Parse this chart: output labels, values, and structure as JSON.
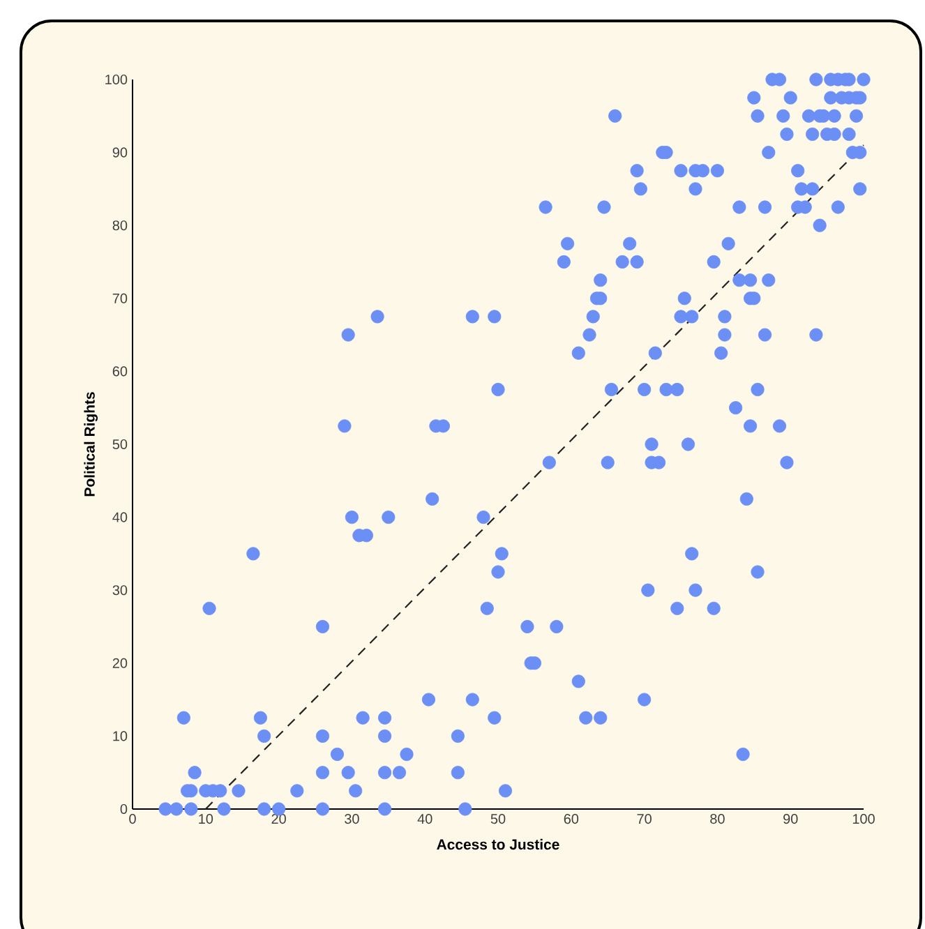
{
  "chart_data": {
    "type": "scatter",
    "xlabel": "Access to Justice",
    "ylabel": "Political Rights",
    "xlim": [
      0,
      100
    ],
    "ylim": [
      0,
      100
    ],
    "xticks": [
      0,
      10,
      20,
      30,
      40,
      50,
      60,
      70,
      80,
      90,
      100
    ],
    "yticks": [
      0,
      10,
      20,
      30,
      40,
      50,
      60,
      70,
      80,
      90,
      100
    ],
    "grid": false,
    "series": [
      {
        "color": "#6b8ff5",
        "marker": "circle",
        "x": [
          4.5,
          6,
          8,
          7,
          8,
          8.5,
          7.5,
          10,
          11,
          12.5,
          12,
          14.5,
          10.5,
          16.5,
          17.5,
          18,
          18,
          20,
          22.5,
          26,
          26,
          26,
          26,
          28,
          29,
          29.5,
          29.5,
          30,
          30.5,
          31,
          32,
          31.5,
          33.5,
          34.5,
          34.5,
          34.5,
          34.5,
          35,
          36.5,
          37.5,
          40.5,
          41,
          41.5,
          42.5,
          44.5,
          44.5,
          45.5,
          46.5,
          46.5,
          48,
          48.5,
          49.5,
          49.5,
          50,
          50,
          50.5,
          51,
          54,
          54.5,
          55,
          56.5,
          57,
          58,
          59,
          59.5,
          61,
          61,
          62,
          62.5,
          63,
          63.5,
          64,
          64,
          64,
          64.5,
          65,
          65.5,
          66,
          67,
          68,
          69,
          69,
          70,
          69.5,
          70,
          70.5,
          71,
          71,
          71.5,
          72,
          72.5,
          73,
          73,
          74.5,
          74.5,
          75,
          75,
          75.5,
          76,
          76.5,
          76.5,
          77,
          77,
          77,
          78,
          79.5,
          79.5,
          80,
          80.5,
          81,
          81,
          81.5,
          82.5,
          83,
          83,
          83.5,
          84,
          84.5,
          84.5,
          84.5,
          85,
          85,
          85.5,
          85.5,
          85.5,
          86.5,
          86.5,
          87,
          87,
          87.5,
          88.5,
          88.5,
          89,
          89.5,
          89.5,
          90,
          91,
          91,
          91.5,
          92,
          92.5,
          93,
          93,
          93.5,
          93.5,
          94,
          94,
          94.5,
          95,
          95.5,
          95.5,
          96,
          96,
          96.5,
          97,
          97.5,
          98,
          98,
          98,
          98.5,
          99,
          99,
          99.5,
          99.5,
          99.5,
          100,
          96.5
        ],
        "values": [
          0,
          0,
          0,
          12.5,
          2.5,
          5,
          2.5,
          2.5,
          2.5,
          0,
          2.5,
          2.5,
          27.5,
          35,
          12.5,
          10,
          0,
          0,
          2.5,
          0,
          5,
          10,
          25,
          7.5,
          52.5,
          65,
          5,
          40,
          2.5,
          37.5,
          37.5,
          12.5,
          67.5,
          12.5,
          10,
          5,
          0,
          40,
          5,
          7.5,
          15,
          42.5,
          52.5,
          52.5,
          10,
          5,
          0,
          15,
          67.5,
          40,
          27.5,
          67.5,
          12.5,
          57.5,
          32.5,
          35,
          2.5,
          25,
          20,
          20,
          82.5,
          47.5,
          25,
          75,
          77.5,
          62.5,
          17.5,
          12.5,
          65,
          67.5,
          70,
          70,
          72.5,
          12.5,
          82.5,
          47.5,
          57.5,
          95,
          75,
          77.5,
          75,
          87.5,
          57.5,
          85,
          15,
          30,
          47.5,
          50,
          62.5,
          47.5,
          90,
          90,
          57.5,
          57.5,
          27.5,
          67.5,
          87.5,
          70,
          50,
          35,
          67.5,
          87.5,
          85,
          30,
          87.5,
          75,
          27.5,
          87.5,
          62.5,
          67.5,
          65,
          77.5,
          55,
          82.5,
          72.5,
          7.5,
          42.5,
          52.5,
          70,
          72.5,
          97.5,
          70,
          95,
          57.5,
          32.5,
          82.5,
          65,
          72.5,
          90,
          100,
          100,
          52.5,
          95,
          92.5,
          47.5,
          97.5,
          82.5,
          87.5,
          85,
          82.5,
          95,
          92.5,
          85,
          65,
          100,
          95,
          80,
          95,
          92.5,
          97.5,
          100,
          92.5,
          95,
          100,
          97.5,
          100,
          97.5,
          100,
          92.5,
          90,
          95,
          97.5,
          90,
          85,
          97.5,
          100,
          82.5
        ]
      },
      {
        "type": "line",
        "color": "#222222",
        "line_style": "dashed",
        "marker": "none",
        "x": [
          10,
          100
        ],
        "values": [
          0,
          91
        ]
      }
    ]
  }
}
